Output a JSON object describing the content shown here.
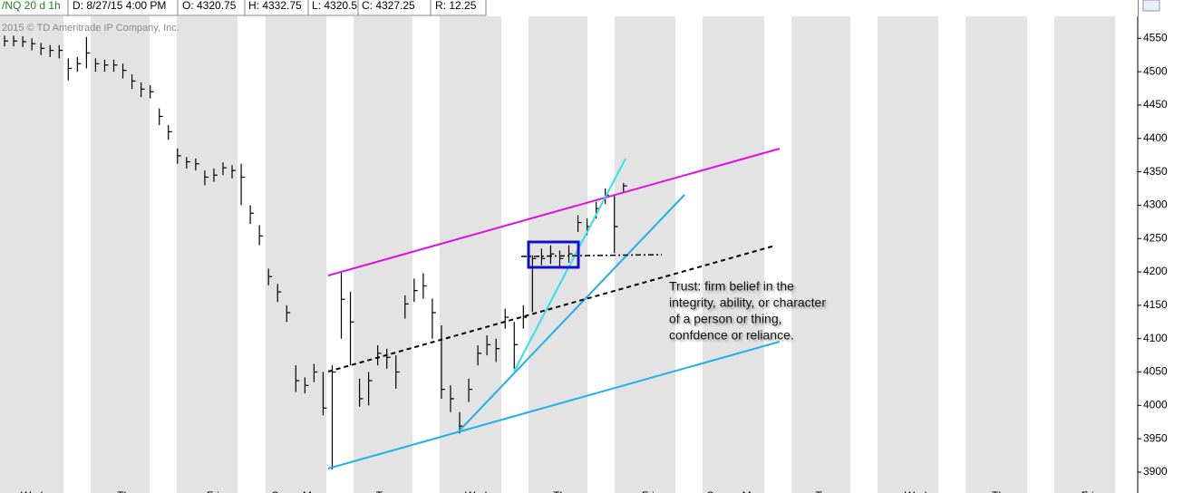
{
  "header": {
    "symbol": "/NQ 20 d 1h",
    "date": "D: 8/27/15 4:00 PM",
    "open": "O: 4320.75",
    "high": "H: 4332.75",
    "low": "L: 4320.5",
    "close": "C: 4327.25",
    "range": "R: 12.25"
  },
  "copyright": "2015 © TD Ameritrade IP Company, Inc.",
  "annotation": [
    "Trust: firm belief in the",
    "integrity, ability, or character",
    "of a person or thing,",
    "confdence or reliance."
  ],
  "chart_data": {
    "type": "hlc",
    "color": "#000000",
    "high": [
      4554,
      4554,
      4553,
      4550,
      4543,
      4540,
      4540,
      4520,
      4522,
      4552,
      4520,
      4518,
      4518,
      4512,
      4496,
      4484,
      4480,
      4445,
      4420,
      4385,
      4372,
      4370,
      4352,
      4355,
      4364,
      4360,
      4362,
      4300,
      4270,
      4205,
      4182,
      4150,
      4060,
      4042,
      4062,
      4050,
      4060,
      4200,
      4170,
      4040,
      4050,
      4090,
      4085,
      4075,
      4165,
      4190,
      4198,
      4160,
      4120,
      4030,
      3990,
      4040,
      4090,
      4105,
      4100,
      4145,
      4125,
      4150,
      4225,
      4235,
      4240,
      4232,
      4240,
      4285,
      4280,
      4305,
      4325,
      4315,
      4333
    ],
    "low": [
      4538,
      4538,
      4537,
      4532,
      4525,
      4522,
      4520,
      4487,
      4500,
      4505,
      4500,
      4500,
      4500,
      4490,
      4474,
      4462,
      4460,
      4420,
      4398,
      4362,
      4355,
      4352,
      4330,
      4335,
      4345,
      4340,
      4300,
      4272,
      4240,
      4180,
      4155,
      4125,
      4020,
      4018,
      4035,
      3985,
      3904,
      4100,
      4060,
      3998,
      4000,
      4060,
      4055,
      4025,
      4130,
      4155,
      4160,
      4100,
      4010,
      3990,
      3958,
      4005,
      4060,
      4075,
      4065,
      4115,
      4055,
      4115,
      4140,
      4210,
      4212,
      4208,
      4214,
      4260,
      4255,
      4280,
      4302,
      4228,
      4318
    ],
    "close": [
      4546,
      4546,
      4545,
      4542,
      4535,
      4532,
      4532,
      4505,
      4512,
      4528,
      4512,
      4510,
      4510,
      4502,
      4486,
      4474,
      4470,
      4433,
      4410,
      4374,
      4365,
      4362,
      4342,
      4345,
      4356,
      4352,
      4342,
      4288,
      4254,
      4193,
      4170,
      4139,
      4037,
      4030,
      4050,
      3996,
      4050,
      4159,
      4125,
      4010,
      4037,
      4078,
      4072,
      4050,
      4152,
      4172,
      4179,
      4139,
      4024,
      4010,
      3969,
      4024,
      4078,
      4091,
      4085,
      4132,
      4091,
      4132,
      4220,
      4220,
      4227,
      4220,
      4227,
      4274,
      4268,
      4295,
      4315,
      4268,
      4329
    ],
    "xlim": [
      0,
      125
    ],
    "xticks": [
      {
        "value": 3.5,
        "label": "Wed"
      },
      {
        "value": 13.9,
        "label": "Thu"
      },
      {
        "value": 23.4,
        "label": "Fri"
      },
      {
        "value": 30.9,
        "label": "Sun"
      },
      {
        "value": 34.4,
        "label": "Mon"
      },
      {
        "value": 42.3,
        "label": "Tue"
      },
      {
        "value": 52.3,
        "label": "Wed"
      },
      {
        "value": 61.8,
        "label": "Thu"
      },
      {
        "value": 71.2,
        "label": "Fri"
      },
      {
        "value": 78.7,
        "label": "Sun"
      },
      {
        "value": 82.7,
        "label": "Mon"
      },
      {
        "value": 90.6,
        "label": "Tue"
      },
      {
        "value": 100.6,
        "label": "Wed"
      },
      {
        "value": 110,
        "label": "Thu"
      },
      {
        "value": 119.5,
        "label": "Fri"
      }
    ],
    "ylim": [
      3885,
      4583
    ],
    "yticks": [
      3900,
      3950,
      4000,
      4050,
      4100,
      4150,
      4200,
      4250,
      4300,
      4350,
      4400,
      4450,
      4500,
      4550
    ]
  }
}
